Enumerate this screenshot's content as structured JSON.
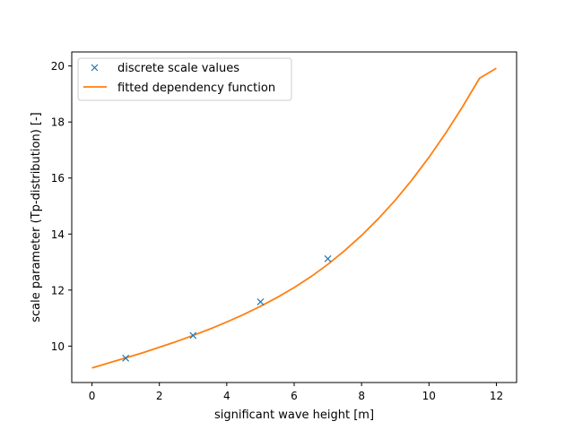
{
  "chart_data": {
    "type": "line",
    "xlabel": "significant wave height [m]",
    "ylabel": "scale parameter (Tp-distribution) [-]",
    "xlim": [
      -0.6,
      12.6
    ],
    "ylim": [
      8.7,
      20.5
    ],
    "xticks": [
      0,
      2,
      4,
      6,
      8,
      10,
      12
    ],
    "yticks": [
      10,
      12,
      14,
      16,
      18,
      20
    ],
    "grid": false,
    "legend_position": "top-left",
    "series": [
      {
        "name": "discrete scale values",
        "kind": "scatter",
        "marker": "x",
        "color": "#1f77b4",
        "x": [
          1,
          3,
          5,
          7
        ],
        "y": [
          9.57,
          10.38,
          11.58,
          13.12
        ]
      },
      {
        "name": "fitted dependency function",
        "kind": "line",
        "color": "#ff7f0e",
        "x": [
          0,
          0.5,
          1,
          1.5,
          2,
          2.5,
          3,
          3.5,
          4,
          4.5,
          5,
          5.5,
          6,
          6.5,
          7,
          7.5,
          8,
          8.5,
          9,
          9.5,
          10,
          10.5,
          11,
          11.5,
          12
        ],
        "y": [
          9.22,
          9.4,
          9.58,
          9.76,
          9.96,
          10.16,
          10.38,
          10.61,
          10.86,
          11.13,
          11.42,
          11.74,
          12.09,
          12.48,
          12.92,
          13.41,
          13.95,
          14.55,
          15.21,
          15.94,
          16.74,
          17.61,
          18.55,
          19.56,
          19.92
        ]
      }
    ]
  }
}
